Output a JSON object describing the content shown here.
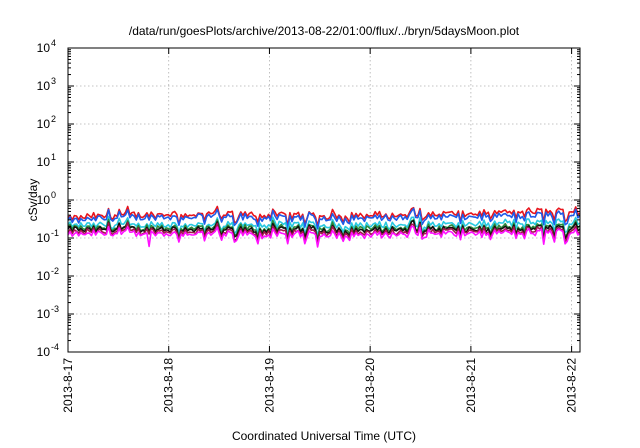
{
  "chart_data": {
    "type": "line",
    "title": "/data/run/goesPlots/archive/2013-08-22/01:00/flux/../bryn/5daysMoon.plot",
    "xlabel": "Coordinated Universal Time (UTC)",
    "ylabel": "cSv/day",
    "yscale": "log",
    "ylim": [
      0.0001,
      10000
    ],
    "y_ticks": [
      {
        "base": "10",
        "exp": "-4"
      },
      {
        "base": "10",
        "exp": "-3"
      },
      {
        "base": "10",
        "exp": "-2"
      },
      {
        "base": "10",
        "exp": "-1"
      },
      {
        "base": "10",
        "exp": "0"
      },
      {
        "base": "10",
        "exp": "1"
      },
      {
        "base": "10",
        "exp": "2"
      },
      {
        "base": "10",
        "exp": "3"
      },
      {
        "base": "10",
        "exp": "4"
      }
    ],
    "x_range": [
      "2013-8-17",
      "2013-8-22 02:00"
    ],
    "x_tick_labels": [
      "2013-8-17",
      "2013-8-18",
      "2013-8-19",
      "2013-8-20",
      "2013-8-21",
      "2013-8-22"
    ],
    "grid": true,
    "legend": "none",
    "x": [
      "2013-8-17 00:00",
      "2013-8-17 12:00",
      "2013-8-18 00:00",
      "2013-8-18 12:00",
      "2013-8-19 00:00",
      "2013-8-19 12:00",
      "2013-8-20 00:00",
      "2013-8-20 12:00",
      "2013-8-21 00:00",
      "2013-8-21 12:00",
      "2013-8-22 00:00",
      "2013-8-22 02:00"
    ],
    "series": [
      {
        "color": "#e8141c",
        "values": [
          0.33,
          0.4,
          0.42,
          0.44,
          0.4,
          0.38,
          0.4,
          0.41,
          0.43,
          0.5,
          0.52,
          0.45
        ]
      },
      {
        "color": "#1f5ae8",
        "values": [
          0.28,
          0.34,
          0.36,
          0.37,
          0.34,
          0.33,
          0.34,
          0.35,
          0.37,
          0.4,
          0.42,
          0.38
        ]
      },
      {
        "color": "#27c9e0",
        "values": [
          0.21,
          0.22,
          0.23,
          0.22,
          0.22,
          0.22,
          0.22,
          0.22,
          0.23,
          0.26,
          0.26,
          0.25
        ]
      },
      {
        "color": "#2a8a3a",
        "values": [
          0.18,
          0.18,
          0.19,
          0.19,
          0.18,
          0.18,
          0.18,
          0.18,
          0.19,
          0.2,
          0.21,
          0.2
        ]
      },
      {
        "color": "#111111",
        "values": [
          0.16,
          0.17,
          0.17,
          0.17,
          0.16,
          0.16,
          0.16,
          0.17,
          0.17,
          0.18,
          0.19,
          0.18
        ]
      },
      {
        "color": "#a0174a",
        "values": [
          0.14,
          0.15,
          0.15,
          0.15,
          0.14,
          0.14,
          0.14,
          0.15,
          0.15,
          0.16,
          0.16,
          0.15
        ]
      },
      {
        "color": "#ff10ff",
        "values": [
          0.12,
          0.13,
          0.13,
          0.13,
          0.12,
          0.12,
          0.12,
          0.13,
          0.13,
          0.14,
          0.14,
          0.13
        ]
      }
    ]
  }
}
